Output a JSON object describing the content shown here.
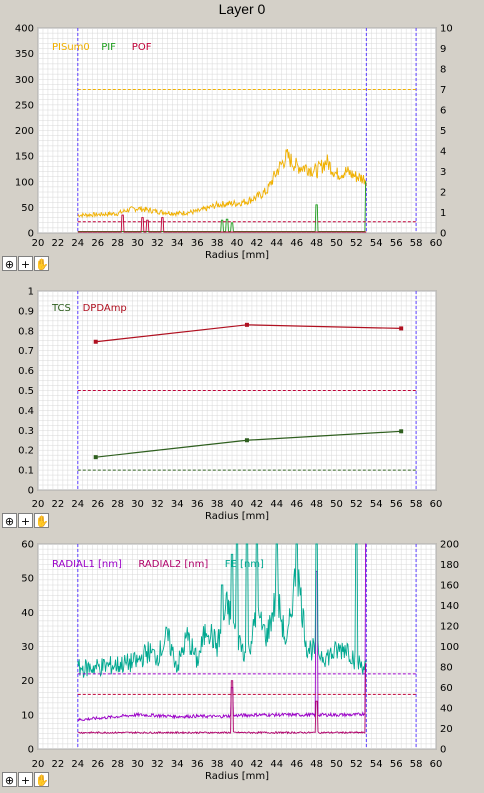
{
  "window": {
    "title": "Layer 0"
  },
  "toolbar": {
    "zoom_glyph": "⊕",
    "cross_glyph": "+",
    "pan_glyph": "✋"
  },
  "colors": {
    "bg": "#d4d0c8",
    "plot_bg": "#ffffff",
    "grid": "#d8d8d8",
    "marker": "#5a3cff",
    "orange": "#f0b000",
    "green": "#1d9e1d",
    "red": "#c00038",
    "dark_red": "#b01020",
    "dark_green": "#2f5f1f",
    "purple": "#9b00c8",
    "magenta": "#b0006a",
    "teal": "#00a890"
  },
  "chart_data": [
    {
      "type": "line",
      "title": "Layer 0",
      "xlabel": "Radius [mm]",
      "xlim": [
        20,
        60
      ],
      "x_ticks": [
        20,
        22,
        24,
        26,
        28,
        30,
        32,
        34,
        36,
        38,
        40,
        42,
        44,
        46,
        48,
        50,
        52,
        54,
        56,
        58,
        60
      ],
      "ylim_left": [
        0,
        400
      ],
      "y_ticks_left": [
        0,
        50,
        100,
        150,
        200,
        250,
        300,
        350,
        400
      ],
      "ylim_right": [
        0,
        10
      ],
      "y_ticks_right": [
        0,
        1,
        2,
        3,
        4,
        5,
        6,
        7,
        8,
        9,
        10
      ],
      "vertical_markers": [
        24,
        53,
        58
      ],
      "series": [
        {
          "name": "PISum0",
          "axis": "left",
          "style": "noisy",
          "x": [
            24,
            26,
            28,
            29,
            30,
            31,
            32,
            33,
            34,
            35,
            36,
            37,
            38,
            39,
            40,
            41,
            42,
            43,
            44,
            45,
            46,
            47,
            48,
            49,
            50,
            51,
            52,
            53
          ],
          "y": [
            35,
            36,
            38,
            45,
            48,
            45,
            42,
            40,
            38,
            40,
            42,
            48,
            55,
            57,
            58,
            62,
            70,
            82,
            120,
            150,
            130,
            128,
            120,
            140,
            115,
            120,
            110,
            105
          ]
        },
        {
          "name": "PIF",
          "axis": "left",
          "style": "spiky",
          "x": [
            24,
            53
          ],
          "y": [
            3,
            3
          ],
          "spikes": [
            [
              38.5,
              25
            ],
            [
              39,
              27
            ],
            [
              39.5,
              20
            ],
            [
              48,
              55
            ],
            [
              53,
              100
            ]
          ]
        },
        {
          "name": "POF",
          "axis": "left",
          "style": "spiky",
          "x": [
            24,
            53
          ],
          "y": [
            2,
            2
          ],
          "spikes": [
            [
              28.5,
              35
            ],
            [
              30.5,
              30
            ],
            [
              31,
              25
            ],
            [
              32.5,
              30
            ]
          ]
        },
        {
          "name": "",
          "axis": "left",
          "style": "dashed-orange",
          "x": [
            24,
            58
          ],
          "y": [
            280,
            280
          ]
        },
        {
          "name": "",
          "axis": "left",
          "style": "dashed-red",
          "x": [
            24,
            58
          ],
          "y": [
            22,
            22
          ]
        }
      ]
    },
    {
      "type": "line",
      "xlabel": "Radius [mm]",
      "xlim": [
        20,
        60
      ],
      "x_ticks": [
        20,
        22,
        24,
        26,
        28,
        30,
        32,
        34,
        36,
        38,
        40,
        42,
        44,
        46,
        48,
        50,
        52,
        54,
        56,
        58,
        60
      ],
      "ylim_left": [
        0,
        1
      ],
      "y_ticks_left": [
        0,
        0.1,
        0.2,
        0.3,
        0.4,
        0.5,
        0.6,
        0.7,
        0.8,
        0.9,
        1
      ],
      "vertical_markers": [
        24,
        58
      ],
      "series": [
        {
          "name": "TCS",
          "axis": "left",
          "style": "markers",
          "x": [
            25.8,
            41,
            56.5
          ],
          "y": [
            0.165,
            0.25,
            0.295
          ]
        },
        {
          "name": "DPDAmp",
          "axis": "left",
          "style": "markers",
          "x": [
            25.8,
            41,
            56.5
          ],
          "y": [
            0.745,
            0.83,
            0.812
          ]
        },
        {
          "name": "",
          "axis": "left",
          "style": "dashed-red",
          "x": [
            24,
            58
          ],
          "y": [
            0.5,
            0.5
          ]
        },
        {
          "name": "",
          "axis": "left",
          "style": "dashed-green",
          "x": [
            24,
            58
          ],
          "y": [
            0.1,
            0.1
          ]
        }
      ]
    },
    {
      "type": "line",
      "xlabel": "Radius [mm]",
      "xlim": [
        20,
        60
      ],
      "x_ticks": [
        20,
        22,
        24,
        26,
        28,
        30,
        32,
        34,
        36,
        38,
        40,
        42,
        44,
        46,
        48,
        50,
        52,
        54,
        56,
        58,
        60
      ],
      "ylim_left": [
        0,
        60
      ],
      "y_ticks_left": [
        0,
        10,
        20,
        30,
        40,
        50,
        60
      ],
      "ylim_right": [
        0,
        200
      ],
      "y_ticks_right": [
        0,
        20,
        40,
        60,
        80,
        100,
        120,
        140,
        160,
        180,
        200
      ],
      "vertical_markers": [
        24,
        53,
        58
      ],
      "series": [
        {
          "name": "RADIAL1 [nm]",
          "axis": "left",
          "style": "noisy-small",
          "x": [
            24,
            26,
            28,
            30,
            32,
            34,
            36,
            38,
            40,
            42,
            44,
            46,
            48,
            50,
            52,
            53
          ],
          "y": [
            8.5,
            9,
            9.5,
            10,
            9.8,
            9.5,
            9.6,
            9.5,
            9.8,
            10,
            10,
            10,
            10,
            10,
            10,
            10.5
          ],
          "spikes": [
            [
              39.5,
              18
            ],
            [
              48,
              52
            ],
            [
              53,
              70
            ]
          ]
        },
        {
          "name": "RADIAL2 [nm]",
          "axis": "left",
          "style": "noisy-small",
          "x": [
            24,
            26,
            28,
            30,
            32,
            34,
            36,
            38,
            40,
            42,
            44,
            46,
            48,
            50,
            52,
            53
          ],
          "y": [
            4.8,
            4.8,
            4.8,
            4.8,
            4.8,
            4.8,
            4.8,
            4.8,
            4.8,
            4.8,
            4.8,
            4.8,
            4.8,
            4.8,
            4.8,
            4.8
          ],
          "spikes": [
            [
              39.5,
              20
            ],
            [
              48,
              14
            ],
            [
              53,
              25
            ]
          ]
        },
        {
          "name": "FE [nm]",
          "axis": "right",
          "style": "noisy",
          "x": [
            24,
            26,
            28,
            30,
            31,
            32,
            33,
            34,
            35,
            36,
            37,
            38,
            39,
            40,
            41,
            42,
            43,
            44,
            45,
            46,
            47,
            48,
            49,
            50,
            51,
            52,
            53
          ],
          "y": [
            78,
            80,
            82,
            85,
            95,
            90,
            110,
            80,
            110,
            85,
            120,
            100,
            140,
            110,
            90,
            130,
            110,
            150,
            100,
            180,
            100,
            95,
            90,
            95,
            100,
            85,
            80
          ],
          "spikes": [
            [
              38.5,
              160
            ],
            [
              39.5,
              190
            ],
            [
              40,
              200
            ],
            [
              41,
              200
            ],
            [
              42,
              200
            ],
            [
              44,
              200
            ],
            [
              46,
              200
            ],
            [
              48,
              200
            ],
            [
              52,
              200
            ]
          ]
        },
        {
          "name": "",
          "axis": "left",
          "style": "dashed-purple",
          "x": [
            24,
            58
          ],
          "y": [
            22,
            22
          ]
        },
        {
          "name": "",
          "axis": "left",
          "style": "dashed-red",
          "x": [
            24,
            58
          ],
          "y": [
            16,
            16
          ]
        }
      ]
    }
  ]
}
